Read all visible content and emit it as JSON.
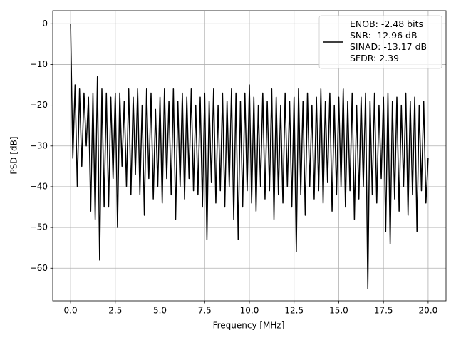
{
  "chart_data": {
    "type": "line",
    "xlabel": "Frequency [MHz]",
    "ylabel": "PSD [dB]",
    "x": [
      0,
      0.125,
      0.25,
      0.375,
      0.5,
      0.625,
      0.75,
      0.875,
      1,
      1.125,
      1.25,
      1.375,
      1.5,
      1.625,
      1.75,
      1.875,
      2,
      2.125,
      2.25,
      2.375,
      2.5,
      2.625,
      2.75,
      2.875,
      3,
      3.125,
      3.25,
      3.375,
      3.5,
      3.625,
      3.75,
      3.875,
      4,
      4.125,
      4.25,
      4.375,
      4.5,
      4.625,
      4.75,
      4.875,
      5,
      5.125,
      5.25,
      5.375,
      5.5,
      5.625,
      5.75,
      5.875,
      6,
      6.125,
      6.25,
      6.375,
      6.5,
      6.625,
      6.75,
      6.875,
      7,
      7.125,
      7.25,
      7.375,
      7.5,
      7.625,
      7.75,
      7.875,
      8,
      8.125,
      8.25,
      8.375,
      8.5,
      8.625,
      8.75,
      8.875,
      9,
      9.125,
      9.25,
      9.375,
      9.5,
      9.625,
      9.75,
      9.875,
      10,
      10.125,
      10.25,
      10.375,
      10.5,
      10.625,
      10.75,
      10.875,
      11,
      11.125,
      11.25,
      11.375,
      11.5,
      11.625,
      11.75,
      11.875,
      12,
      12.125,
      12.25,
      12.375,
      12.5,
      12.625,
      12.75,
      12.875,
      13,
      13.125,
      13.25,
      13.375,
      13.5,
      13.625,
      13.75,
      13.875,
      14,
      14.125,
      14.25,
      14.375,
      14.5,
      14.625,
      14.75,
      14.875,
      15,
      15.125,
      15.25,
      15.375,
      15.5,
      15.625,
      15.75,
      15.875,
      16,
      16.125,
      16.25,
      16.375,
      16.5,
      16.625,
      16.75,
      16.875,
      17,
      17.125,
      17.25,
      17.375,
      17.5,
      17.625,
      17.75,
      17.875,
      18,
      18.125,
      18.25,
      18.375,
      18.5,
      18.625,
      18.75,
      18.875,
      19,
      19.125,
      19.25,
      19.375,
      19.5,
      19.625,
      19.75,
      19.875,
      20
    ],
    "series": [
      {
        "name": "ENOB: -2.48 bits\nSNR: -12.96 dB\nSINAD: -13.17 dB\nSFDR: 2.39",
        "color": "#000000",
        "values": [
          0,
          -33,
          -15,
          -40,
          -16,
          -35,
          -17,
          -30,
          -18,
          -46,
          -17,
          -48,
          -13,
          -58,
          -16,
          -45,
          -17,
          -45,
          -18,
          -38,
          -17,
          -50,
          -17,
          -35,
          -19,
          -40,
          -16,
          -42,
          -18,
          -37,
          -16,
          -42,
          -20,
          -47,
          -16,
          -38,
          -17,
          -43,
          -21,
          -40,
          -18,
          -44,
          -16,
          -38,
          -19,
          -42,
          -16,
          -48,
          -19,
          -40,
          -17,
          -43,
          -18,
          -38,
          -16,
          -41,
          -20,
          -42,
          -18,
          -45,
          -17,
          -53,
          -19,
          -39,
          -16,
          -44,
          -20,
          -41,
          -17,
          -45,
          -19,
          -40,
          -16,
          -48,
          -17,
          -53,
          -19,
          -45,
          -17,
          -41,
          -15,
          -44,
          -18,
          -46,
          -20,
          -40,
          -17,
          -43,
          -19,
          -41,
          -16,
          -48,
          -18,
          -42,
          -20,
          -44,
          -17,
          -40,
          -19,
          -45,
          -18,
          -56,
          -16,
          -42,
          -19,
          -47,
          -17,
          -40,
          -20,
          -43,
          -18,
          -41,
          -16,
          -44,
          -19,
          -39,
          -17,
          -46,
          -20,
          -42,
          -18,
          -40,
          -16,
          -45,
          -19,
          -41,
          -17,
          -48,
          -20,
          -43,
          -18,
          -40,
          -17,
          -65,
          -19,
          -42,
          -17,
          -44,
          -20,
          -38,
          -18,
          -51,
          -17,
          -54,
          -19,
          -43,
          -18,
          -46,
          -20,
          -40,
          -17,
          -47,
          -19,
          -42,
          -18,
          -51,
          -20,
          -41,
          -19,
          -44,
          -33
        ]
      }
    ],
    "xlim": [
      -1,
      21
    ],
    "ylim": [
      -68,
      3.2
    ],
    "xticks": [
      {
        "value": 0,
        "label": "0.0"
      },
      2.5,
      {
        "value": 5,
        "label": "5.0"
      },
      7.5,
      {
        "value": 10,
        "label": "10.0"
      },
      12.5,
      {
        "value": 15,
        "label": "15.0"
      },
      17.5,
      {
        "value": 20,
        "label": "20.0"
      }
    ],
    "yticks": [
      {
        "value": -60,
        "label": "−60"
      },
      {
        "value": -50,
        "label": "−50"
      },
      {
        "value": -40,
        "label": "−40"
      },
      {
        "value": -30,
        "label": "−30"
      },
      {
        "value": -20,
        "label": "−20"
      },
      {
        "value": -10,
        "label": "−10"
      },
      0
    ],
    "grid": true,
    "legend": "upper right"
  }
}
